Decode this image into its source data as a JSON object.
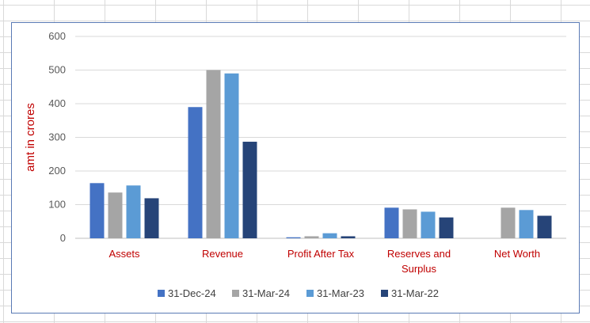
{
  "chart_data": {
    "type": "bar",
    "title": "",
    "xlabel": "",
    "ylabel": "amt in crores",
    "ylim": [
      0,
      600
    ],
    "yticks": [
      0,
      100,
      200,
      300,
      400,
      500,
      600
    ],
    "grid": true,
    "legend_position": "bottom",
    "categories": [
      [
        "Assets"
      ],
      [
        "Revenue"
      ],
      [
        "Profit After Tax"
      ],
      [
        "Reserves and",
        "Surplus"
      ],
      [
        "Net Worth"
      ]
    ],
    "series": [
      {
        "name": "31-Dec-24",
        "color": "#4472c4",
        "values": [
          164,
          390,
          3,
          91,
          0
        ]
      },
      {
        "name": "31-Mar-24",
        "color": "#a5a5a5",
        "values": [
          136,
          500,
          6,
          86,
          91
        ]
      },
      {
        "name": "31-Mar-23",
        "color": "#5b9bd5",
        "values": [
          157,
          490,
          15,
          79,
          84
        ]
      },
      {
        "name": "31-Mar-22",
        "color": "#264478",
        "values": [
          119,
          287,
          6,
          62,
          67
        ]
      }
    ]
  }
}
